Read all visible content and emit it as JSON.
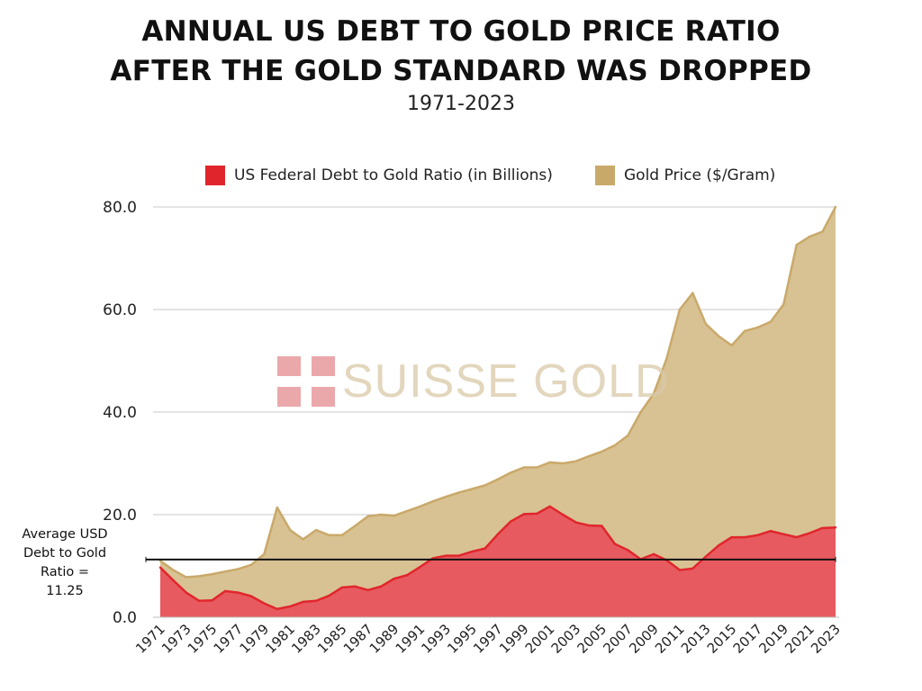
{
  "chart_data": {
    "type": "area",
    "title_line1": "ANNUAL US DEBT TO GOLD PRICE RATIO",
    "title_line2": "AFTER THE GOLD STANDARD WAS DROPPED",
    "subtitle": "1971-2023",
    "x": [
      1971,
      1972,
      1973,
      1974,
      1975,
      1976,
      1977,
      1978,
      1979,
      1980,
      1981,
      1982,
      1983,
      1984,
      1985,
      1986,
      1987,
      1988,
      1989,
      1990,
      1991,
      1992,
      1993,
      1994,
      1995,
      1996,
      1997,
      1998,
      1999,
      2000,
      2001,
      2002,
      2003,
      2004,
      2005,
      2006,
      2007,
      2008,
      2009,
      2010,
      2011,
      2012,
      2013,
      2014,
      2015,
      2016,
      2017,
      2018,
      2019,
      2020,
      2021,
      2022,
      2023
    ],
    "x_tick_labels": [
      "1971",
      "1973",
      "1975",
      "1977",
      "1979",
      "1981",
      "1983",
      "1985",
      "1987",
      "1989",
      "1991",
      "1993",
      "1995",
      "1997",
      "1999",
      "2001",
      "2003",
      "2005",
      "2007",
      "2009",
      "2011",
      "2013",
      "2015",
      "2017",
      "2019",
      "2021",
      "2023"
    ],
    "series": [
      {
        "name": "Gold Price ($/Gram)",
        "color": "#c9a96a",
        "fill": "#d8c293",
        "values": [
          11.0,
          9.2,
          7.8,
          8.0,
          8.4,
          8.9,
          9.4,
          10.2,
          12.3,
          21.4,
          17.0,
          15.2,
          17.0,
          16.0,
          16.0,
          17.8,
          19.7,
          20.0,
          19.8,
          20.7,
          21.6,
          22.6,
          23.5,
          24.3,
          25.0,
          25.7,
          26.9,
          28.2,
          29.2,
          29.2,
          30.2,
          30.0,
          30.4,
          31.4,
          32.3,
          33.5,
          35.4,
          40.0,
          43.6,
          50.5,
          60.0,
          63.2,
          57.2,
          54.8,
          53.0,
          55.8,
          56.5,
          57.6,
          61.0,
          72.6,
          74.2,
          75.2,
          80.0
        ]
      },
      {
        "name": "US Federal Debt to Gold Ratio (in Billions)",
        "color": "#e0262c",
        "fill": "#e75a60",
        "values": [
          9.7,
          7.2,
          4.8,
          3.2,
          3.3,
          5.1,
          4.8,
          4.1,
          2.7,
          1.6,
          2.1,
          3.0,
          3.2,
          4.2,
          5.8,
          6.0,
          5.3,
          6.0,
          7.5,
          8.2,
          9.8,
          11.5,
          12.0,
          12.0,
          12.8,
          13.4,
          16.2,
          18.7,
          20.1,
          20.2,
          21.6,
          20.0,
          18.5,
          17.9,
          17.8,
          14.3,
          13.1,
          11.3,
          12.3,
          11.1,
          9.2,
          9.5,
          11.8,
          14.0,
          15.6,
          15.6,
          16.0,
          16.8,
          16.2,
          15.6,
          16.4,
          17.4,
          17.5
        ]
      }
    ],
    "average_line": {
      "value": 11.25,
      "label_lines": [
        "Average USD",
        "Debt to Gold",
        "Ratio = 11.25"
      ],
      "color": "#111111"
    },
    "y_ticks": [
      "0.0",
      "20.0",
      "40.0",
      "60.0",
      "80.0"
    ],
    "ylim": [
      0,
      80
    ],
    "xlabel": "",
    "ylabel": "",
    "grid": true,
    "legend_position": "top",
    "watermark": "SUISSE GOLD"
  }
}
